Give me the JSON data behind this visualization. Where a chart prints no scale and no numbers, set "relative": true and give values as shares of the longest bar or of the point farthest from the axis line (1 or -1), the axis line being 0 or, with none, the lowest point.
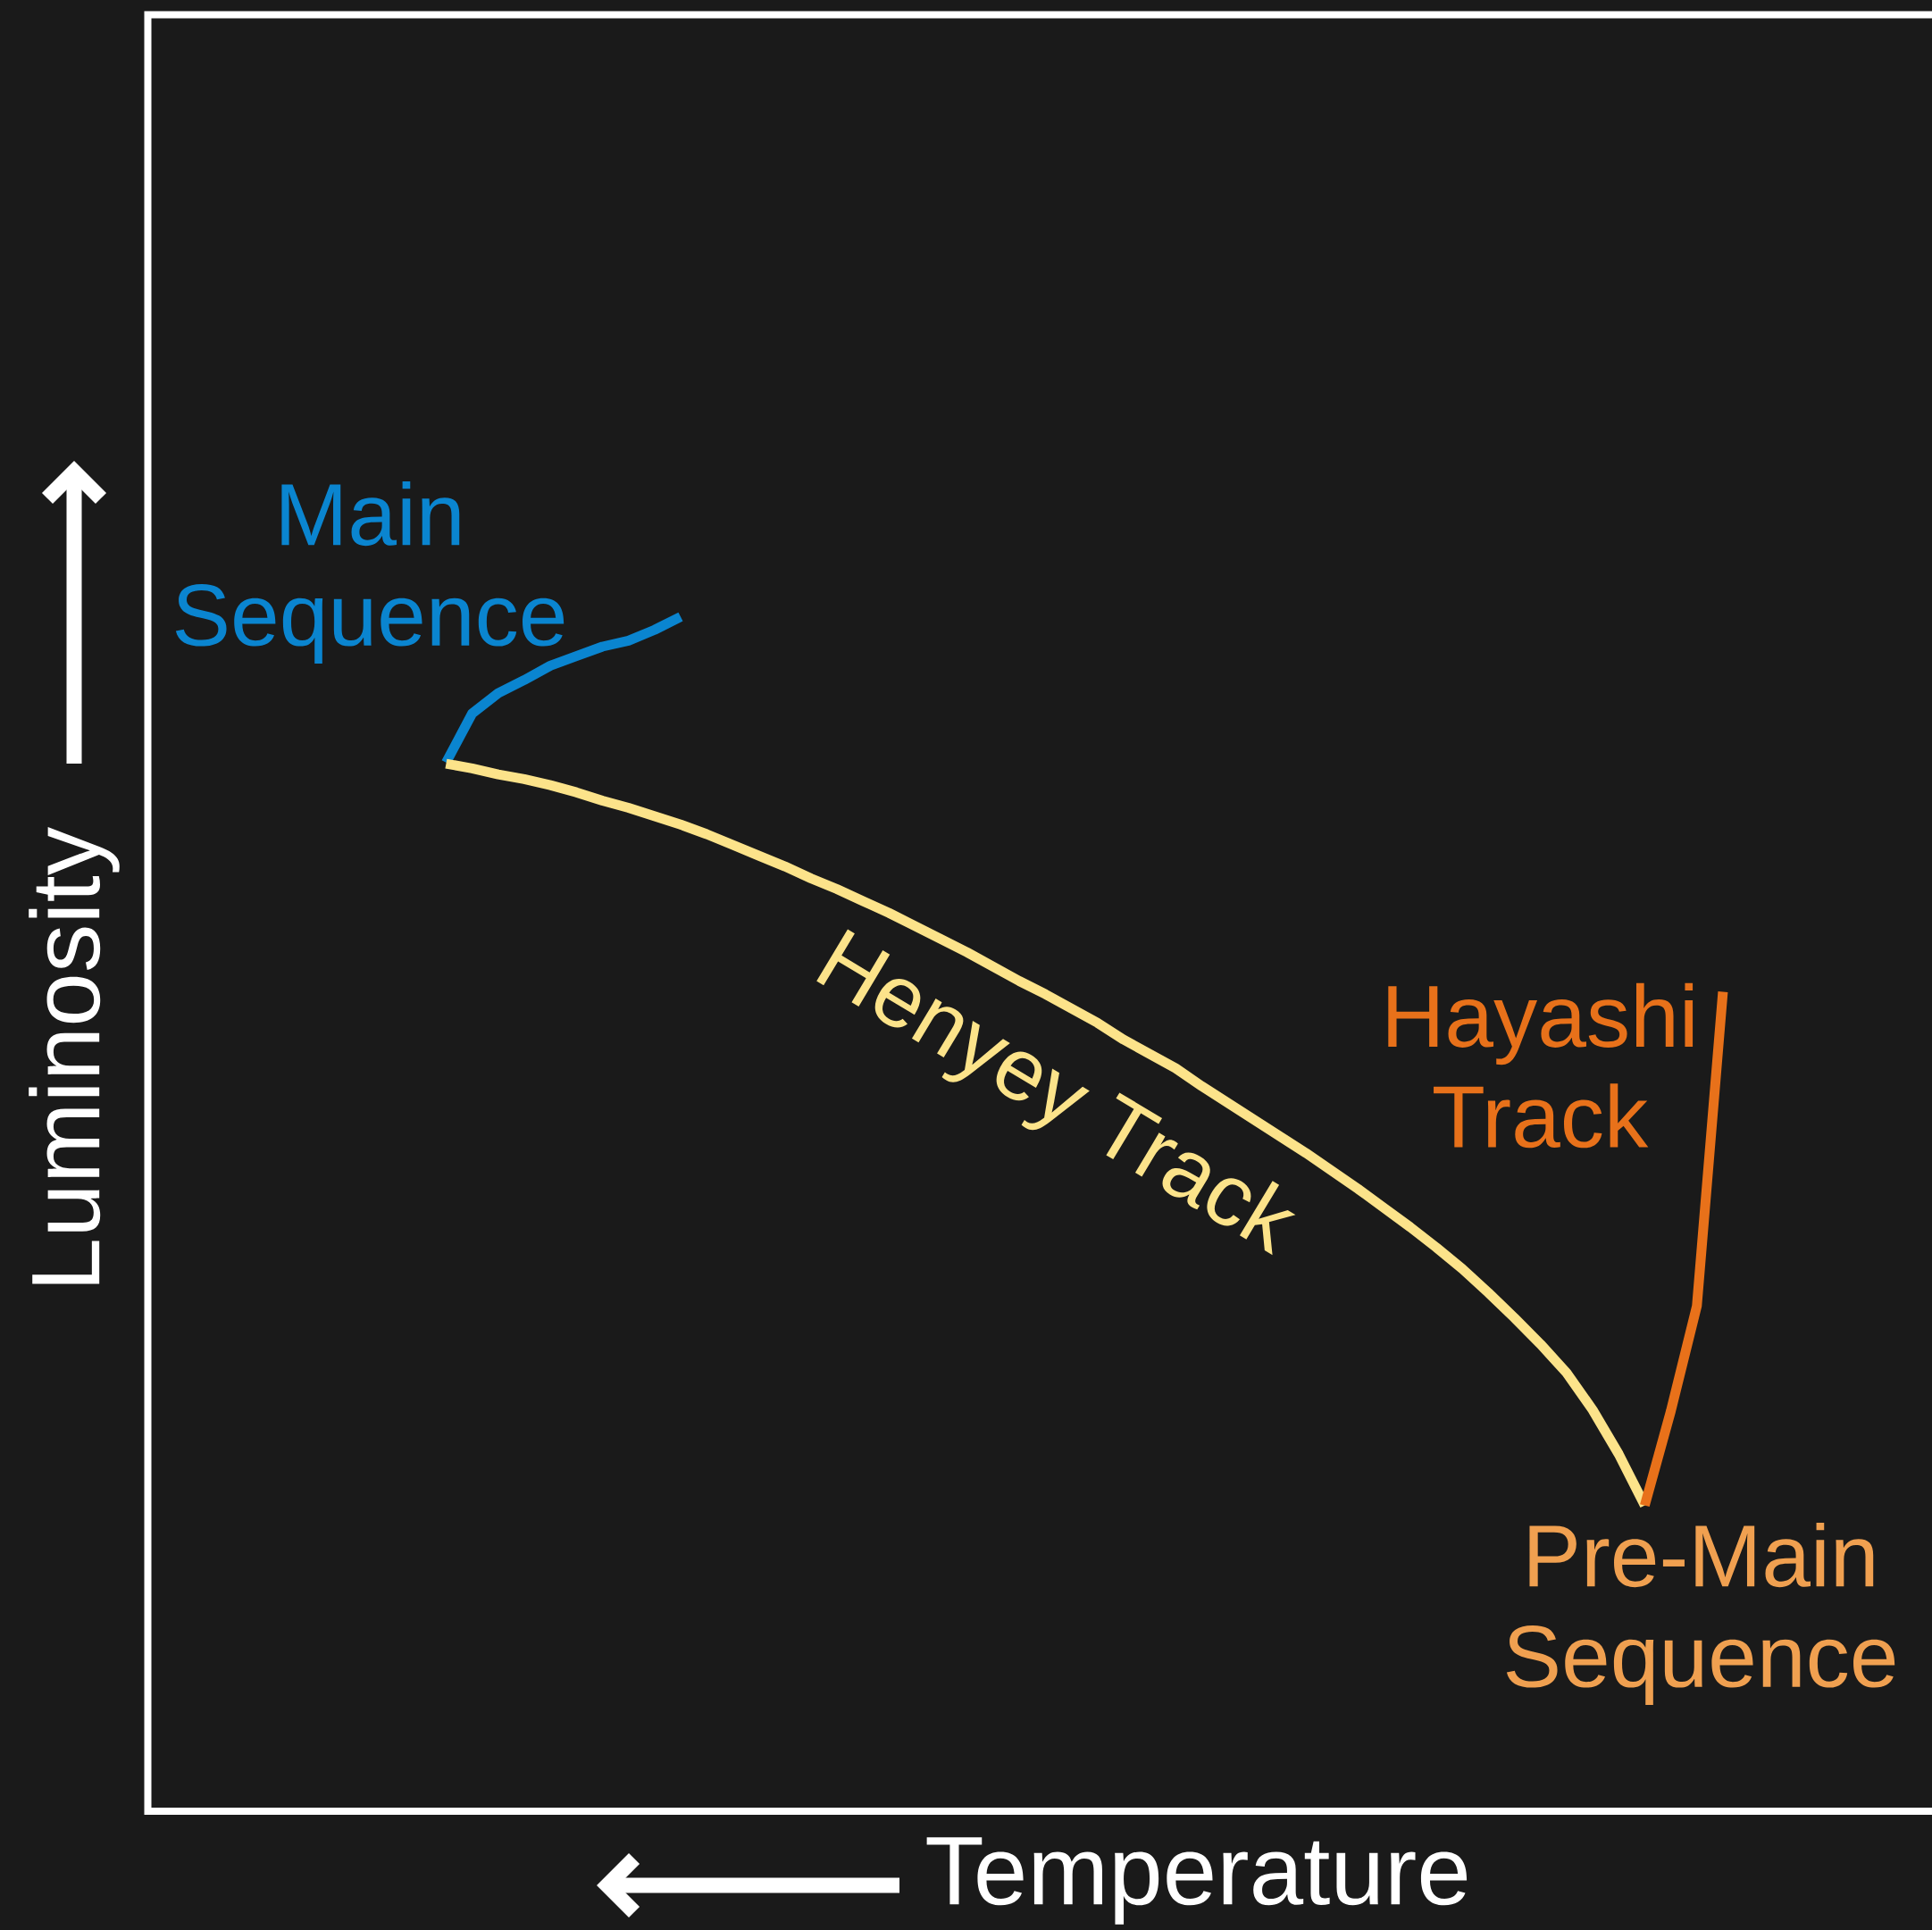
{
  "chart_data": {
    "type": "line",
    "relative": true,
    "xlabel": "Temperature",
    "ylabel": "Luminosity",
    "categories": [
      null,
      null,
      null,
      null,
      null,
      null,
      null,
      null,
      null,
      null,
      null,
      null,
      null,
      null,
      null,
      null,
      null,
      null,
      null,
      null,
      null,
      null,
      null,
      null,
      null,
      null,
      null,
      null,
      null,
      null,
      null,
      null,
      null,
      null,
      null,
      null,
      null,
      null,
      null,
      null,
      null,
      null,
      null,
      null,
      null,
      null,
      null,
      null,
      null,
      null
    ],
    "series": [
      {
        "name": "Main Sequence",
        "color": "#0a85d0",
        "values": [
          0.878,
          0.919,
          0.936,
          0.947,
          0.959,
          0.967,
          0.975,
          0.98,
          0.989,
          1.0,
          null,
          null,
          null,
          null,
          null,
          null,
          null,
          null,
          null,
          null,
          null,
          null,
          null,
          null,
          null,
          null,
          null,
          null,
          null,
          null,
          null,
          null,
          null,
          null,
          null,
          null,
          null,
          null,
          null,
          null,
          null,
          null,
          null,
          null,
          null,
          null,
          null,
          null,
          null,
          null
        ]
      },
      {
        "name": "Henyey Track",
        "color": "#fce38a",
        "values": [
          0.877,
          0.873,
          0.868,
          0.864,
          0.859,
          0.853,
          0.846,
          0.84,
          0.833,
          0.826,
          0.818,
          0.809,
          0.8,
          0.791,
          0.781,
          0.772,
          0.762,
          0.752,
          0.741,
          0.73,
          0.719,
          0.707,
          0.695,
          0.684,
          0.672,
          0.66,
          0.646,
          0.634,
          0.622,
          0.607,
          0.593,
          0.579,
          0.565,
          0.551,
          0.536,
          0.521,
          0.505,
          0.489,
          0.472,
          0.454,
          0.434,
          0.413,
          0.391,
          0.367,
          0.336,
          0.299,
          0.256,
          null,
          null,
          null
        ]
      },
      {
        "name": "Hayashi Track",
        "color": "#e8711a",
        "values": [
          null,
          null,
          null,
          null,
          null,
          null,
          null,
          null,
          null,
          null,
          null,
          null,
          null,
          null,
          null,
          null,
          null,
          null,
          null,
          null,
          null,
          null,
          null,
          null,
          null,
          null,
          null,
          null,
          null,
          null,
          null,
          null,
          null,
          null,
          null,
          null,
          null,
          null,
          null,
          null,
          null,
          null,
          null,
          null,
          null,
          null,
          0.256,
          0.335,
          0.423,
          0.686
        ]
      }
    ],
    "annotations": [
      "Pre-Main Sequence"
    ]
  }
}
